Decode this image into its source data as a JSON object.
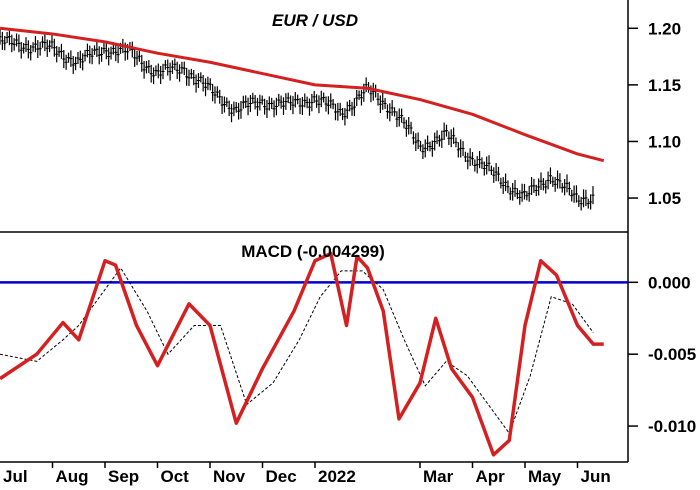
{
  "chart_data": [
    {
      "type": "line",
      "title": "EUR / USD",
      "ylim": [
        1.02,
        1.225
      ],
      "yticks": [
        1.2,
        1.15,
        1.1,
        1.05
      ],
      "ytick_labels": [
        "1.20",
        "1.15",
        "1.10",
        "1.05"
      ],
      "x_months": [
        "Jul",
        "Aug",
        "Sep",
        "Oct",
        "Nov",
        "Dec",
        "2022",
        "Mar",
        "Apr",
        "May",
        "Jun"
      ],
      "x_month_index": [
        0,
        1,
        2,
        3,
        4,
        5,
        6,
        8,
        9,
        10,
        11
      ],
      "series": [
        {
          "style": "price-bars",
          "color": "#000000",
          "x": [
            0,
            0.5,
            1,
            1.5,
            2,
            2.5,
            3,
            3.5,
            4,
            4.5,
            5,
            5.5,
            6,
            6.5,
            7,
            7.5,
            8,
            8.5,
            9,
            9.5,
            10,
            10.5,
            11,
            11.3
          ],
          "values": [
            1.188,
            1.185,
            1.182,
            1.17,
            1.182,
            1.178,
            1.16,
            1.165,
            1.145,
            1.128,
            1.135,
            1.132,
            1.138,
            1.125,
            1.145,
            1.128,
            1.095,
            1.105,
            1.085,
            1.068,
            1.05,
            1.07,
            1.048,
            1.052
          ]
        },
        {
          "style": "moving-average",
          "color": "#d42020",
          "x": [
            0,
            1,
            2,
            3,
            4,
            5,
            6,
            7,
            8,
            9,
            10,
            11,
            11.5
          ],
          "values": [
            1.2,
            1.195,
            1.188,
            1.178,
            1.17,
            1.16,
            1.15,
            1.147,
            1.137,
            1.124,
            1.106,
            1.089,
            1.083
          ]
        }
      ]
    },
    {
      "type": "line",
      "title": "MACD (-0.004299)",
      "ylim": [
        -0.0125,
        0.0035
      ],
      "yticks": [
        0.0,
        -0.005,
        -0.01
      ],
      "ytick_labels": [
        "0.000",
        "-0.005",
        "-0.010"
      ],
      "zero_line_color": "#0000cc",
      "series": [
        {
          "style": "macd",
          "color": "#d42020",
          "x": [
            0,
            0.7,
            1.2,
            1.5,
            2.0,
            2.2,
            2.6,
            3.0,
            3.6,
            4.0,
            4.5,
            5.0,
            5.6,
            6.0,
            6.3,
            6.6,
            6.8,
            7.0,
            7.3,
            7.6,
            8.0,
            8.3,
            8.6,
            9.0,
            9.4,
            9.7,
            10.0,
            10.3,
            10.6,
            11.0,
            11.3,
            11.5
          ],
          "values": [
            -0.0067,
            -0.005,
            -0.0028,
            -0.004,
            0.0015,
            0.0012,
            -0.003,
            -0.0058,
            -0.0015,
            -0.003,
            -0.0098,
            -0.006,
            -0.002,
            0.0015,
            0.002,
            -0.003,
            0.0018,
            0.001,
            -0.002,
            -0.0095,
            -0.007,
            -0.0025,
            -0.006,
            -0.008,
            -0.012,
            -0.011,
            -0.003,
            0.0015,
            0.0005,
            -0.003,
            -0.0043,
            -0.0043
          ]
        },
        {
          "style": "signal",
          "color": "#000000",
          "x": [
            0,
            0.7,
            1.2,
            1.5,
            2.0,
            2.3,
            2.8,
            3.2,
            3.7,
            4.2,
            4.7,
            5.2,
            5.7,
            6.1,
            6.5,
            6.9,
            7.3,
            7.7,
            8.1,
            8.5,
            8.9,
            9.3,
            9.7,
            10.1,
            10.5,
            10.9,
            11.3
          ],
          "values": [
            -0.005,
            -0.0055,
            -0.004,
            -0.003,
            -0.0005,
            0.001,
            -0.002,
            -0.005,
            -0.003,
            -0.003,
            -0.0085,
            -0.007,
            -0.004,
            -0.001,
            0.0008,
            0.0008,
            -0.0005,
            -0.004,
            -0.0072,
            -0.0055,
            -0.0065,
            -0.0085,
            -0.0105,
            -0.0065,
            -0.001,
            -0.0015,
            -0.0035
          ]
        }
      ]
    }
  ]
}
